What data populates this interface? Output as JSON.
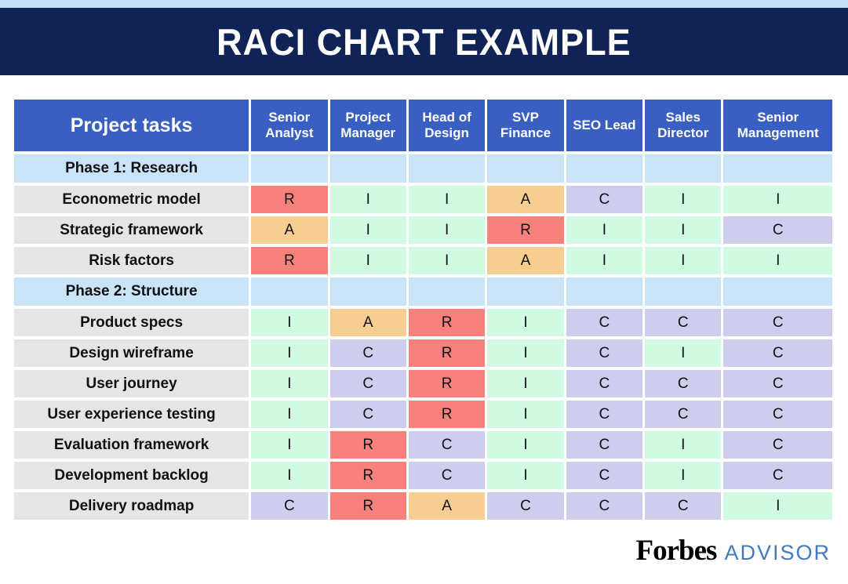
{
  "colors": {
    "strip_blue": "#c5e1f9",
    "banner_navy": "#0f2356",
    "header_blue": "#3a5fc2",
    "phase_blue": "#c9e3f9",
    "task_gray": "#e5e5e5",
    "text_dark": "#111111",
    "advisor_blue": "#4579bd"
  },
  "chart_data": {
    "type": "table",
    "title": "RACI CHART EXAMPLE",
    "task_column_header": "Project tasks",
    "role_columns": [
      "Senior Analyst",
      "Project Manager",
      "Head of Design",
      "SVP Finance",
      "SEO Lead",
      "Sales Director",
      "Senior Management"
    ],
    "cell_colors": {
      "R": "#f8827b",
      "A": "#f8cd92",
      "C": "#cfcdee",
      "I": "#d0fbe2"
    },
    "rows": [
      {
        "kind": "phase",
        "label": "Phase 1: Research"
      },
      {
        "kind": "task",
        "label": "Econometric model",
        "values": [
          "R",
          "I",
          "I",
          "A",
          "C",
          "I",
          "I"
        ]
      },
      {
        "kind": "task",
        "label": "Strategic framework",
        "values": [
          "A",
          "I",
          "I",
          "R",
          "I",
          "I",
          "C"
        ]
      },
      {
        "kind": "task",
        "label": "Risk factors",
        "values": [
          "R",
          "I",
          "I",
          "A",
          "I",
          "I",
          "I"
        ]
      },
      {
        "kind": "phase",
        "label": "Phase 2: Structure"
      },
      {
        "kind": "task",
        "label": "Product specs",
        "values": [
          "I",
          "A",
          "R",
          "I",
          "C",
          "C",
          "C"
        ]
      },
      {
        "kind": "task",
        "label": "Design wireframe",
        "values": [
          "I",
          "C",
          "R",
          "I",
          "C",
          "I",
          "C"
        ]
      },
      {
        "kind": "task",
        "label": "User journey",
        "values": [
          "I",
          "C",
          "R",
          "I",
          "C",
          "C",
          "C"
        ]
      },
      {
        "kind": "task",
        "label": "User experience testing",
        "values": [
          "I",
          "C",
          "R",
          "I",
          "C",
          "C",
          "C"
        ]
      },
      {
        "kind": "task",
        "label": "Evaluation framework",
        "values": [
          "I",
          "R",
          "C",
          "I",
          "C",
          "I",
          "C"
        ]
      },
      {
        "kind": "task",
        "label": "Development backlog",
        "values": [
          "I",
          "R",
          "C",
          "I",
          "C",
          "I",
          "C"
        ]
      },
      {
        "kind": "task",
        "label": "Delivery roadmap",
        "values": [
          "C",
          "R",
          "A",
          "C",
          "C",
          "C",
          "I"
        ]
      }
    ]
  },
  "footer": {
    "brand": "Forbes",
    "brand_suffix": "ADVISOR"
  }
}
